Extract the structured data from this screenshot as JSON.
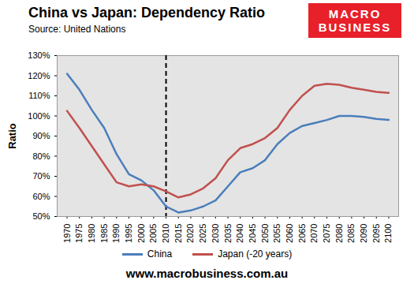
{
  "chart_data": {
    "type": "line",
    "title": "China vs Japan: Dependency Ratio",
    "subtitle": "Source: United Nations",
    "logo": [
      "MACRO",
      "BUSINESS"
    ],
    "footer": "www.macrobusiness.com.au",
    "y_label": "Ratio",
    "x": [
      1970,
      1975,
      1980,
      1985,
      1990,
      1995,
      2000,
      2005,
      2010,
      2015,
      2020,
      2025,
      2030,
      2035,
      2040,
      2045,
      2050,
      2055,
      2060,
      2065,
      2070,
      2075,
      2080,
      2085,
      2090,
      2095,
      2100
    ],
    "series": [
      {
        "name": "China",
        "color": "#4a7ebb",
        "values": [
          121,
          113,
          103,
          94,
          81,
          71,
          68,
          63,
          55,
          52,
          53,
          55,
          58,
          65,
          72,
          74,
          78,
          86,
          91.5,
          95,
          96.5,
          98,
          100,
          100,
          99.5,
          98.5,
          98
        ]
      },
      {
        "name": "Japan (-20 years)",
        "color": "#c0504d",
        "values": [
          102.5,
          94,
          85,
          76,
          67,
          65,
          66,
          65,
          62.5,
          59.5,
          61,
          64,
          69,
          78,
          84,
          86,
          89,
          94,
          103,
          110,
          115,
          116,
          115.5,
          114,
          113,
          112,
          111.5
        ]
      }
    ],
    "reference_line": {
      "x": 2010,
      "line_style": "dashed"
    },
    "xlim": [
      1966,
      2104
    ],
    "xticks": [
      1970,
      1975,
      1980,
      1985,
      1990,
      1995,
      2000,
      2005,
      2010,
      2015,
      2020,
      2025,
      2030,
      2035,
      2040,
      2045,
      2050,
      2055,
      2060,
      2065,
      2070,
      2075,
      2080,
      2085,
      2090,
      2095,
      2100
    ],
    "ylim": [
      50,
      130
    ],
    "yticks": [
      {
        "value": 50,
        "label": "50%"
      },
      {
        "value": 60,
        "label": "60%"
      },
      {
        "value": 70,
        "label": "70%"
      },
      {
        "value": 80,
        "label": "80%"
      },
      {
        "value": 90,
        "label": "90%"
      },
      {
        "value": 100,
        "label": "100%"
      },
      {
        "value": 110,
        "label": "110%"
      },
      {
        "value": 120,
        "label": "120%"
      },
      {
        "value": 130,
        "label": "130%"
      }
    ],
    "grid": false,
    "legend": "bottom"
  }
}
